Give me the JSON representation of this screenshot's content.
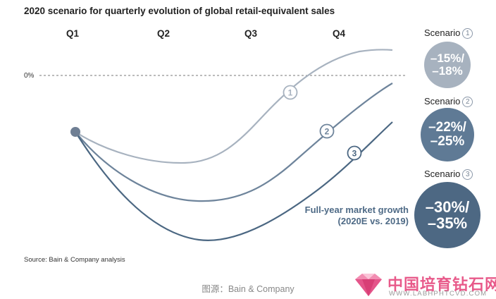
{
  "chart_data": {
    "type": "line",
    "title": "2020 scenario for quarterly evolution of global retail-equivalent sales",
    "categories": [
      "Q1",
      "Q2",
      "Q3",
      "Q4"
    ],
    "reference_line_label": "0%",
    "series": [
      {
        "marker": "1",
        "color": "#a7b2bf"
      },
      {
        "marker": "2",
        "color": "#6e849b"
      },
      {
        "marker": "3",
        "color": "#4b6782"
      }
    ],
    "scenarios": [
      {
        "label": "Scenario",
        "number": "1",
        "value_line1": "–15%/",
        "value_line2": "–18%",
        "color": "#a7b2bf"
      },
      {
        "label": "Scenario",
        "number": "2",
        "value_line1": "–22%/",
        "value_line2": "–25%",
        "color": "#5f7a95"
      },
      {
        "label": "Scenario",
        "number": "3",
        "value_line1": "–30%/",
        "value_line2": "–35%",
        "color": "#4d6883"
      }
    ],
    "annotation_line1": "Full-year market growth",
    "annotation_line2": "(2020E vs. 2019)",
    "source": "Source: Bain & Company analysis",
    "grid": false
  },
  "caption": "图源：Bain & Company",
  "watermark": {
    "text": "中国培育钻石网",
    "url": "WWW.LABHPHTCVD.COM"
  }
}
